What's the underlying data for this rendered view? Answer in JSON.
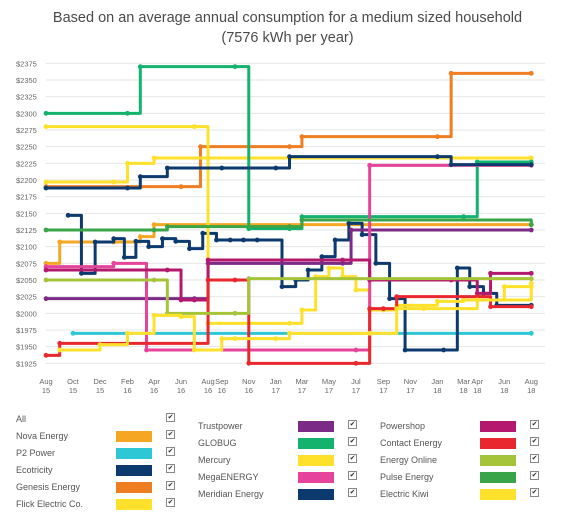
{
  "title_line1": "Based on an average annual consumption for a medium sized household",
  "title_line2": "(7576 kWh per year)",
  "chart_data": {
    "type": "line",
    "title": "Based on an average annual consumption for a medium sized household (7576 kWh per year)",
    "xlabel": "",
    "ylabel": "",
    "ylim": [
      1915,
      2380
    ],
    "xlim": [
      "2015-08-01",
      "2018-09-01"
    ],
    "y_ticks": [
      "$2375",
      "$2350",
      "$2325",
      "$2300",
      "$2275",
      "$2250",
      "$2225",
      "$2200",
      "$2175",
      "$2150",
      "$2125",
      "$2100",
      "$2075",
      "$2050",
      "$2025",
      "$2000",
      "$1975",
      "$1950",
      "$1925"
    ],
    "y_tick_values": [
      2375,
      2350,
      2325,
      2300,
      2275,
      2250,
      2225,
      2200,
      2175,
      2150,
      2125,
      2100,
      2075,
      2050,
      2025,
      2000,
      1975,
      1950,
      1925
    ],
    "x_ticks": [
      {
        "line1": "Aug",
        "line2": "15",
        "date": "2015-08-01"
      },
      {
        "line1": "Oct",
        "line2": "15",
        "date": "2015-10-01"
      },
      {
        "line1": "Dec",
        "line2": "15",
        "date": "2015-12-01"
      },
      {
        "line1": "Feb",
        "line2": "16",
        "date": "2016-02-01"
      },
      {
        "line1": "Apr",
        "line2": "16",
        "date": "2016-04-01"
      },
      {
        "line1": "Jun",
        "line2": "16",
        "date": "2016-06-01"
      },
      {
        "line1": "Aug",
        "line2": "16",
        "date": "2016-08-01"
      },
      {
        "line1": "Sep",
        "line2": "16",
        "date": "2016-09-01"
      },
      {
        "line1": "Nov",
        "line2": "16",
        "date": "2016-11-01"
      },
      {
        "line1": "Jan",
        "line2": "17",
        "date": "2017-01-01"
      },
      {
        "line1": "Mar",
        "line2": "17",
        "date": "2017-03-01"
      },
      {
        "line1": "May",
        "line2": "17",
        "date": "2017-05-01"
      },
      {
        "line1": "Jul",
        "line2": "17",
        "date": "2017-07-01"
      },
      {
        "line1": "Sep",
        "line2": "17",
        "date": "2017-09-01"
      },
      {
        "line1": "Nov",
        "line2": "17",
        "date": "2017-11-01"
      },
      {
        "line1": "Jan",
        "line2": "18",
        "date": "2018-01-01"
      },
      {
        "line1": "Mar",
        "line2": "18",
        "date": "2018-03-01"
      },
      {
        "line1": "Apr",
        "line2": "18",
        "date": "2018-04-01"
      },
      {
        "line1": "Jun",
        "line2": "18",
        "date": "2018-06-01"
      },
      {
        "line1": "Aug",
        "line2": "18",
        "date": "2018-08-01"
      }
    ],
    "grid": true,
    "step": true,
    "legend_position": "bottom",
    "series": [
      {
        "name": "Nova Energy",
        "color": "#f5a623",
        "points": [
          [
            "2015-08-01",
            2075
          ],
          [
            "2015-09-01",
            2107
          ],
          [
            "2016-01-01",
            2107
          ],
          [
            "2016-03-01",
            2115
          ],
          [
            "2016-04-01",
            2133
          ],
          [
            "2018-08-01",
            2133
          ]
        ]
      },
      {
        "name": "P2 Power",
        "color": "#2ec7d6",
        "points": [
          [
            "2015-10-01",
            1970
          ],
          [
            "2018-08-01",
            1970
          ]
        ]
      },
      {
        "name": "Ecotricity",
        "color": "#0d3a6e",
        "points": [
          [
            "2015-09-20",
            2147
          ],
          [
            "2015-10-20",
            2060
          ],
          [
            "2015-11-20",
            2107
          ],
          [
            "2016-01-01",
            2112
          ],
          [
            "2016-01-25",
            2084
          ],
          [
            "2016-02-20",
            2108
          ],
          [
            "2016-03-20",
            2100
          ],
          [
            "2016-04-20",
            2112
          ],
          [
            "2016-05-20",
            2108
          ],
          [
            "2016-06-20",
            2097
          ],
          [
            "2016-07-20",
            2120
          ],
          [
            "2016-08-20",
            2110
          ],
          [
            "2016-09-20",
            2110
          ],
          [
            "2016-10-20",
            2110
          ],
          [
            "2016-11-20",
            2110
          ],
          [
            "2017-01-15",
            2040
          ],
          [
            "2017-02-15",
            2050
          ],
          [
            "2017-03-15",
            2065
          ],
          [
            "2017-04-15",
            2085
          ],
          [
            "2017-05-15",
            2110
          ],
          [
            "2017-06-15",
            2135
          ],
          [
            "2017-07-15",
            2118
          ],
          [
            "2017-08-15",
            2075
          ],
          [
            "2017-09-15",
            2022
          ],
          [
            "2017-10-20",
            1945
          ],
          [
            "2018-01-15",
            1945
          ],
          [
            "2018-02-15",
            2068
          ],
          [
            "2018-03-15",
            2040
          ],
          [
            "2018-04-15",
            2030
          ],
          [
            "2018-05-15",
            2012
          ],
          [
            "2018-08-01",
            2012
          ]
        ]
      },
      {
        "name": "Genesis Energy",
        "color": "#ef7d22",
        "points": [
          [
            "2015-08-01",
            2190
          ],
          [
            "2016-06-01",
            2190
          ],
          [
            "2016-07-15",
            2250
          ],
          [
            "2017-02-01",
            2250
          ],
          [
            "2017-03-01",
            2265
          ],
          [
            "2018-01-01",
            2265
          ],
          [
            "2018-02-01",
            2360
          ],
          [
            "2018-08-01",
            2360
          ]
        ]
      },
      {
        "name": "Flick Electric Co.",
        "color": "#ffe12b",
        "points": [
          [
            "2015-08-01",
            2197
          ],
          [
            "2016-01-01",
            2197
          ],
          [
            "2016-02-01",
            2225
          ],
          [
            "2016-04-01",
            2233
          ],
          [
            "2018-08-01",
            2233
          ]
        ]
      },
      {
        "name": "Trustpower",
        "color": "#7b2a86",
        "points": [
          [
            "2015-08-01",
            2022
          ],
          [
            "2016-07-01",
            2022
          ],
          [
            "2016-08-01",
            2075
          ],
          [
            "2017-06-01",
            2075
          ],
          [
            "2017-06-20",
            2125
          ],
          [
            "2018-08-01",
            2125
          ]
        ]
      },
      {
        "name": "GLOBUG",
        "color": "#13b36e",
        "points": [
          [
            "2015-08-01",
            2300
          ],
          [
            "2016-02-01",
            2300
          ],
          [
            "2016-03-01",
            2370
          ],
          [
            "2016-10-01",
            2370
          ],
          [
            "2016-11-01",
            2127
          ],
          [
            "2017-02-01",
            2127
          ],
          [
            "2017-03-01",
            2145
          ],
          [
            "2018-03-01",
            2145
          ],
          [
            "2018-04-01",
            2227
          ],
          [
            "2018-08-01",
            2227
          ]
        ]
      },
      {
        "name": "Mercury",
        "color": "#ffe12b",
        "points": [
          [
            "2015-08-01",
            2280
          ],
          [
            "2016-07-01",
            2280
          ],
          [
            "2016-08-01",
            1985
          ],
          [
            "2017-02-01",
            1985
          ],
          [
            "2017-03-01",
            2005
          ],
          [
            "2017-04-01",
            2055
          ],
          [
            "2017-05-01",
            2068
          ],
          [
            "2017-06-01",
            2055
          ],
          [
            "2017-07-01",
            2035
          ],
          [
            "2017-08-01",
            2005
          ],
          [
            "2017-09-01",
            2005
          ],
          [
            "2017-10-01",
            2012
          ],
          [
            "2018-01-01",
            2018
          ],
          [
            "2018-03-01",
            2020
          ],
          [
            "2018-08-01",
            2045
          ]
        ]
      },
      {
        "name": "MegaENERGY",
        "color": "#e6449a",
        "points": [
          [
            "2015-08-01",
            2070
          ],
          [
            "2016-01-01",
            2075
          ],
          [
            "2016-03-15",
            1945
          ],
          [
            "2017-07-01",
            1945
          ],
          [
            "2017-08-01",
            2222
          ],
          [
            "2018-08-01",
            2222
          ]
        ]
      },
      {
        "name": "Meridian Energy",
        "color": "#0d3a6e",
        "points": [
          [
            "2015-08-01",
            2188
          ],
          [
            "2016-02-01",
            2188
          ],
          [
            "2016-03-01",
            2205
          ],
          [
            "2016-05-01",
            2218
          ],
          [
            "2016-09-01",
            2218
          ],
          [
            "2017-01-01",
            2218
          ],
          [
            "2017-02-01",
            2235
          ],
          [
            "2018-01-01",
            2235
          ],
          [
            "2018-02-01",
            2223
          ],
          [
            "2018-08-01",
            2223
          ]
        ]
      },
      {
        "name": "Powershop",
        "color": "#b5196e",
        "points": [
          [
            "2015-08-01",
            2065
          ],
          [
            "2016-05-01",
            2065
          ],
          [
            "2016-06-01",
            2020
          ],
          [
            "2016-07-01",
            2020
          ],
          [
            "2016-08-01",
            2080
          ],
          [
            "2017-06-01",
            2080
          ],
          [
            "2017-08-01",
            2050
          ],
          [
            "2018-02-01",
            2050
          ],
          [
            "2018-04-01",
            2030
          ],
          [
            "2018-05-01",
            2060
          ],
          [
            "2018-08-01",
            2060
          ]
        ]
      },
      {
        "name": "Contact Energy",
        "color": "#e8282e",
        "points": [
          [
            "2015-08-01",
            1937
          ],
          [
            "2015-09-01",
            1955
          ],
          [
            "2016-07-01",
            1955
          ],
          [
            "2016-08-01",
            2050
          ],
          [
            "2016-10-01",
            2050
          ],
          [
            "2016-11-01",
            1925
          ],
          [
            "2017-07-01",
            1925
          ],
          [
            "2017-08-01",
            2007
          ],
          [
            "2017-09-01",
            2007
          ],
          [
            "2017-10-01",
            2025
          ],
          [
            "2018-04-01",
            2025
          ],
          [
            "2018-05-01",
            2010
          ],
          [
            "2018-08-01",
            2010
          ]
        ]
      },
      {
        "name": "Energy Online",
        "color": "#a6c43a",
        "points": [
          [
            "2015-08-01",
            2050
          ],
          [
            "2016-04-01",
            2050
          ],
          [
            "2016-05-01",
            2000
          ],
          [
            "2016-10-01",
            2000
          ],
          [
            "2016-11-01",
            2052
          ],
          [
            "2018-08-01",
            2052
          ]
        ]
      },
      {
        "name": "Pulse Energy",
        "color": "#3aa449",
        "points": [
          [
            "2015-08-01",
            2125
          ],
          [
            "2016-04-01",
            2125
          ],
          [
            "2016-05-01",
            2130
          ],
          [
            "2017-02-01",
            2130
          ],
          [
            "2017-03-01",
            2140
          ],
          [
            "2018-08-01",
            2133
          ]
        ]
      },
      {
        "name": "Electric Kiwi",
        "color": "#ffe12b",
        "points": [
          [
            "2015-09-01",
            1945
          ],
          [
            "2015-12-01",
            1953
          ],
          [
            "2016-02-01",
            1970
          ],
          [
            "2016-04-01",
            1997
          ],
          [
            "2016-06-01",
            1995
          ],
          [
            "2016-07-01",
            1945
          ],
          [
            "2016-09-01",
            1962
          ],
          [
            "2016-10-01",
            1962
          ],
          [
            "2017-01-01",
            1962
          ],
          [
            "2017-02-01",
            1970
          ],
          [
            "2017-08-01",
            1970
          ],
          [
            "2017-10-01",
            2007
          ],
          [
            "2017-12-01",
            2007
          ],
          [
            "2018-04-01",
            2020
          ],
          [
            "2018-06-01",
            2040
          ],
          [
            "2018-08-01",
            2040
          ]
        ]
      }
    ]
  },
  "legend": {
    "columns": [
      [
        {
          "label": "All",
          "color": ""
        },
        {
          "label": "Nova Energy",
          "color": "#f5a623"
        },
        {
          "label": "P2 Power",
          "color": "#2ec7d6"
        },
        {
          "label": "Ecotricity",
          "color": "#0d3a6e"
        },
        {
          "label": "Genesis Energy",
          "color": "#ef7d22"
        },
        {
          "label": "Flick Electric Co.",
          "color": "#ffe12b"
        }
      ],
      [
        {
          "label": "Trustpower",
          "color": "#7b2a86"
        },
        {
          "label": "GLOBUG",
          "color": "#13b36e"
        },
        {
          "label": "Mercury",
          "color": "#ffe12b"
        },
        {
          "label": "MegaENERGY",
          "color": "#e6449a"
        },
        {
          "label": "Meridian Energy",
          "color": "#0d3a6e"
        }
      ],
      [
        {
          "label": "Powershop",
          "color": "#b5196e"
        },
        {
          "label": "Contact Energy",
          "color": "#e8282e"
        },
        {
          "label": "Energy Online",
          "color": "#a6c43a"
        },
        {
          "label": "Pulse Energy",
          "color": "#3aa449"
        },
        {
          "label": "Electric Kiwi",
          "color": "#ffe12b"
        }
      ]
    ],
    "check_glyph": "✔"
  }
}
